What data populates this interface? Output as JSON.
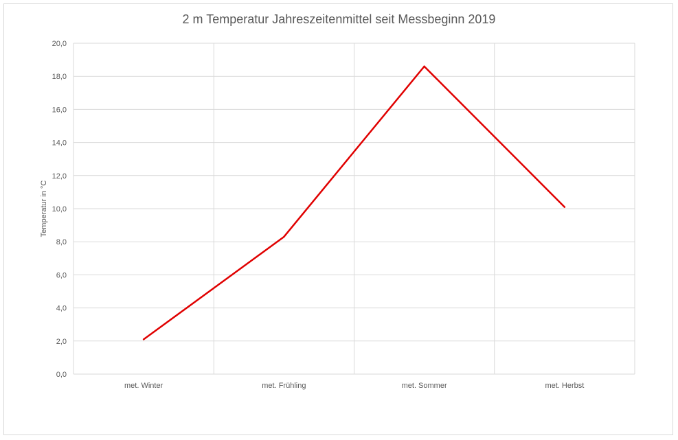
{
  "chart_data": {
    "type": "line",
    "title": "2 m Temperatur Jahreszeitenmittel seit Messbeginn 2019",
    "xlabel": "",
    "ylabel": "Temperatur  in °C",
    "categories": [
      "met. Winter",
      "met. Frühling",
      "met. Sommer",
      "met. Herbst"
    ],
    "series": [
      {
        "values": [
          2.1,
          8.3,
          18.6,
          10.1
        ],
        "color": "#e00000"
      }
    ],
    "ylim": [
      0,
      20
    ],
    "yticks": [
      "0,0",
      "2,0",
      "4,0",
      "6,0",
      "8,0",
      "10,0",
      "12,0",
      "14,0",
      "16,0",
      "18,0",
      "20,0"
    ],
    "grid": true,
    "legend": "none"
  },
  "colors": {
    "grid": "#d9d9d9",
    "text": "#595959",
    "line": "#e00000"
  }
}
